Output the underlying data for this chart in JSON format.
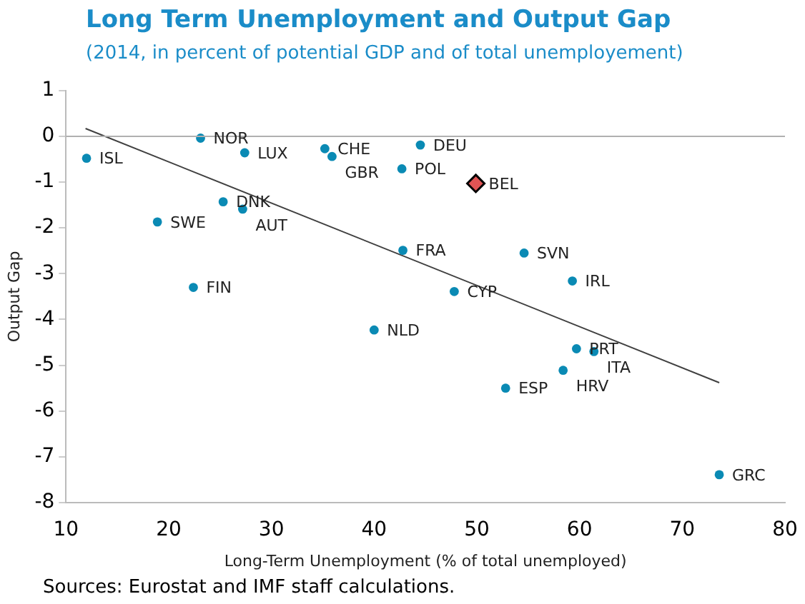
{
  "chart_data": {
    "type": "scatter",
    "title": "Long Term Unemployment and Output Gap",
    "subtitle": "(2014, in percent of potential GDP and of total unemployement)",
    "xlabel": "Long-Term Unemployment (% of total unemployed)",
    "ylabel": "Output Gap",
    "xlim": [
      10,
      80
    ],
    "xticks": [
      10,
      20,
      30,
      40,
      50,
      60,
      70,
      80
    ],
    "ylim": [
      -8,
      1
    ],
    "yticks": [
      -8,
      -7,
      -6,
      -5,
      -4,
      -3,
      -2,
      -1,
      0,
      1
    ],
    "grid": false,
    "legend": false,
    "ref_lines": [
      {
        "axis": "y",
        "value": 0,
        "color": "#b0b0b0"
      }
    ],
    "series": [
      {
        "type": "scatter",
        "marker": "circle",
        "color": "#0a8ab4",
        "x": [
          12.0,
          23.1,
          27.4,
          35.2,
          35.9,
          44.5,
          42.7,
          25.3,
          27.2,
          18.9,
          42.8,
          54.6,
          59.3,
          47.8,
          22.4,
          40.0,
          59.7,
          61.4,
          58.4,
          52.8,
          73.6
        ],
        "values": [
          -0.48,
          -0.04,
          -0.36,
          -0.27,
          -0.44,
          -0.19,
          -0.71,
          -1.43,
          -1.59,
          -1.87,
          -2.49,
          -2.55,
          -3.16,
          -3.39,
          -3.3,
          -4.23,
          -4.64,
          -4.7,
          -5.11,
          -5.5,
          -7.39
        ]
      },
      {
        "type": "scatter",
        "marker": "diamond",
        "color": "#e05454",
        "x": [
          49.9
        ],
        "values": [
          -1.03
        ]
      },
      {
        "type": "line",
        "marker": "none",
        "line_style": "solid",
        "color": "#404040",
        "x": [
          11.9,
          73.6
        ],
        "values": [
          0.17,
          -5.38
        ]
      }
    ],
    "annotations": [
      {
        "text": "ISL",
        "x": 12.0,
        "y": -0.48
      },
      {
        "text": "NOR",
        "x": 23.1,
        "y": -0.04
      },
      {
        "text": "LUX",
        "x": 27.4,
        "y": -0.36
      },
      {
        "text": "CHE",
        "x": 35.2,
        "y": -0.27
      },
      {
        "text": "GBR",
        "x": 35.9,
        "y": -0.44
      },
      {
        "text": "DEU",
        "x": 44.5,
        "y": -0.19
      },
      {
        "text": "POL",
        "x": 42.7,
        "y": -0.71
      },
      {
        "text": "BEL",
        "x": 49.9,
        "y": -1.03
      },
      {
        "text": "DNK",
        "x": 25.3,
        "y": -1.43
      },
      {
        "text": "AUT",
        "x": 27.2,
        "y": -1.59
      },
      {
        "text": "SWE",
        "x": 18.9,
        "y": -1.87
      },
      {
        "text": "FRA",
        "x": 42.8,
        "y": -2.49
      },
      {
        "text": "SVN",
        "x": 54.6,
        "y": -2.55
      },
      {
        "text": "IRL",
        "x": 59.3,
        "y": -3.16
      },
      {
        "text": "CYP",
        "x": 47.8,
        "y": -3.39
      },
      {
        "text": "FIN",
        "x": 22.4,
        "y": -3.3
      },
      {
        "text": "NLD",
        "x": 40.0,
        "y": -4.23
      },
      {
        "text": "PRT",
        "x": 59.7,
        "y": -4.64
      },
      {
        "text": "ITA",
        "x": 61.4,
        "y": -4.7
      },
      {
        "text": "HRV",
        "x": 58.4,
        "y": -5.11
      },
      {
        "text": "ESP",
        "x": 52.8,
        "y": -5.5
      },
      {
        "text": "GRC",
        "x": 73.6,
        "y": -7.39
      },
      "Sources: Eurostat and IMF staff calculations."
    ]
  }
}
